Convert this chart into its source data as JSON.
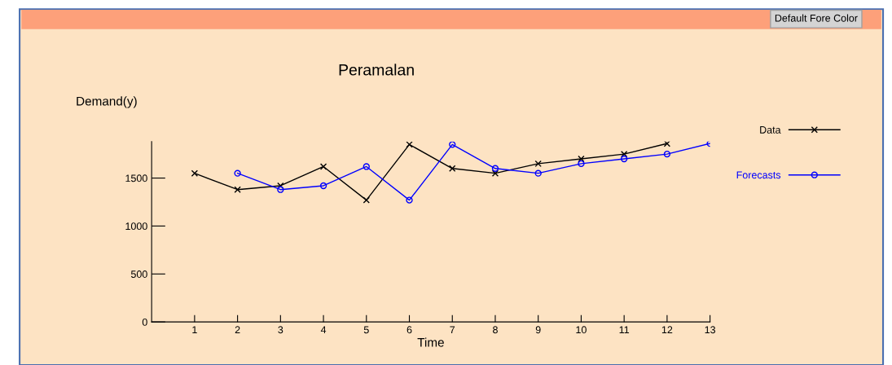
{
  "chart_data": {
    "type": "line",
    "title": "Peramalan",
    "xlabel": "Time",
    "ylabel": "Demand(y)",
    "annotations": [
      "Default Fore Color"
    ],
    "xlim": [
      0,
      13
    ],
    "xticks": [
      1,
      2,
      3,
      4,
      5,
      6,
      7,
      8,
      9,
      10,
      11,
      12,
      13
    ],
    "ylim": [
      0,
      1880
    ],
    "yticks": [
      0,
      500,
      1000,
      1500
    ],
    "grid": false,
    "legend": "right",
    "series": [
      {
        "name": "Data",
        "color": "#000000",
        "marker": "cross",
        "x": [
          1,
          2,
          3,
          4,
          5,
          6,
          7,
          8,
          9,
          10,
          11,
          12
        ],
        "values": [
          1550,
          1380,
          1420,
          1620,
          1270,
          1850,
          1600,
          1550,
          1650,
          1700,
          1750,
          1860
        ]
      },
      {
        "name": "Forecasts",
        "color": "#0000ff",
        "marker": "circle",
        "x": [
          2,
          3,
          4,
          5,
          6,
          7,
          8,
          9,
          10,
          11,
          12,
          13
        ],
        "values": [
          1550,
          1380,
          1420,
          1620,
          1270,
          1850,
          1600,
          1550,
          1650,
          1700,
          1750,
          1860
        ]
      }
    ]
  }
}
